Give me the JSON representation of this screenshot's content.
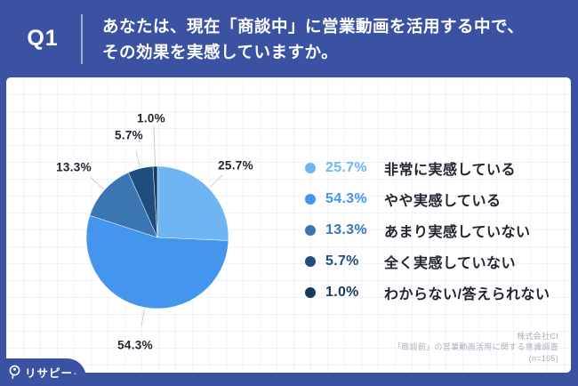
{
  "header": {
    "q_label": "Q1",
    "question_line1": "あなたは、現在「商談中」に営業動画を活用する中で、",
    "question_line2": "その効果を実感していますか。"
  },
  "chart_data": {
    "type": "pie",
    "title": "あなたは、現在「商談中」に営業動画を活用する中で、その効果を実感していますか。",
    "categories": [
      "非常に実感している",
      "やや実感している",
      "あまり実感していない",
      "全く実感していない",
      "わからない/答えられない"
    ],
    "values": [
      25.7,
      54.3,
      13.3,
      5.7,
      1.0
    ],
    "labels": [
      "25.7%",
      "54.3%",
      "13.3%",
      "5.7%",
      "1.0%"
    ],
    "colors": [
      "#6FB5F4",
      "#4495EE",
      "#3C76B2",
      "#1F4D7E",
      "#173A5C"
    ],
    "start_angle_deg": 0,
    "direction": "clockwise",
    "legend_position": "right",
    "sample_note": "(n=105)"
  },
  "footer": {
    "source_line1": "株式会社CI",
    "source_line2": "「商談前」の営業動画活用に関する意識調査",
    "source_line3": "(n=105)",
    "logo_text": "リサピー",
    "logo_dot": "."
  },
  "colors": {
    "background_blue": "#3B51A1",
    "text_dark": "#20242E",
    "leader_line": "#C8CDD5",
    "source_gray": "#A9AEB9",
    "header_text": "#FFFFFF"
  }
}
